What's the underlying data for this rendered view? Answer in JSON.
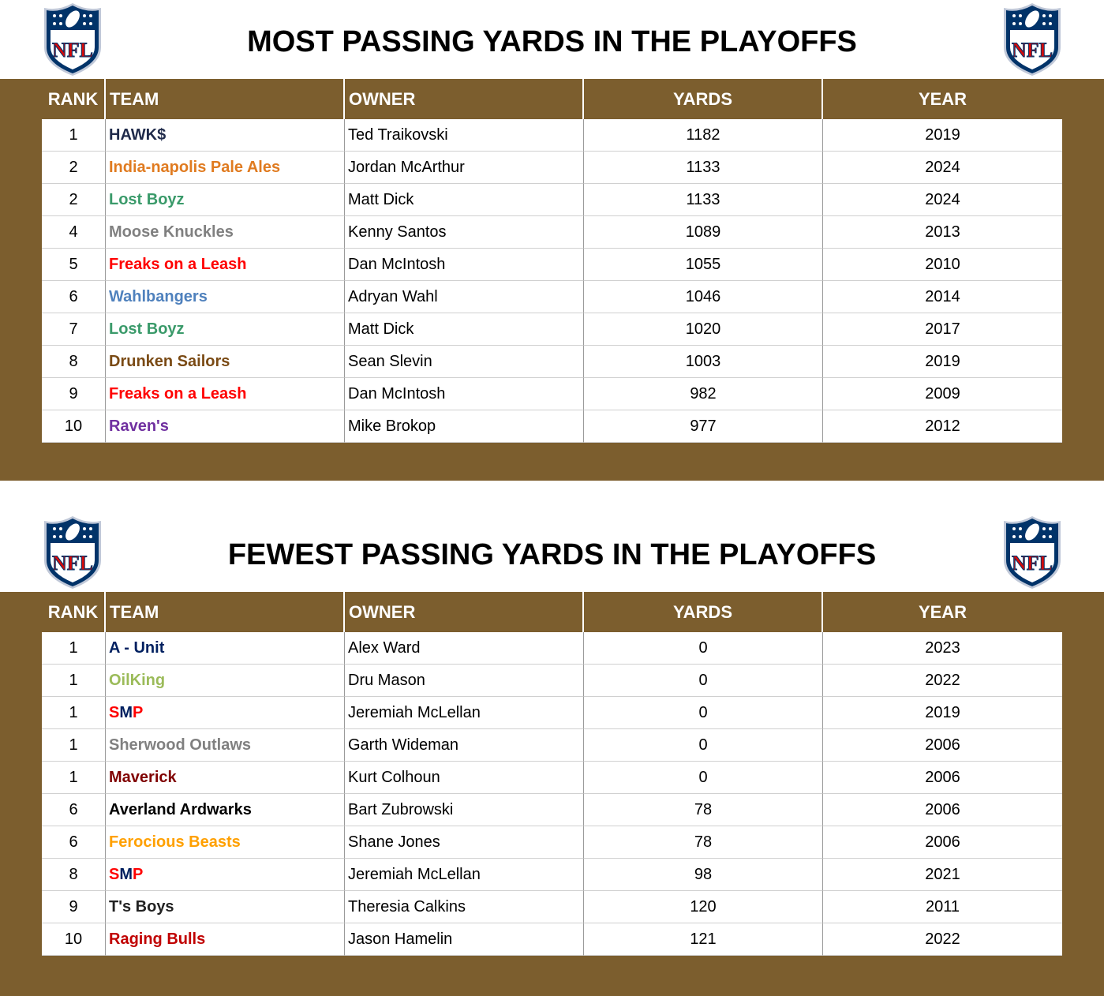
{
  "logo": "NFL",
  "columns": [
    "RANK",
    "TEAM",
    "OWNER",
    "YARDS",
    "YEAR"
  ],
  "sections": [
    {
      "title": "MOST PASSING YARDS IN THE PLAYOFFS",
      "rows": [
        {
          "rank": 1,
          "team": [
            {
              "text": "HAWK$",
              "color": "#1f2a4a"
            }
          ],
          "owner": "Ted Traikovski",
          "yards": 1182,
          "year": 2019
        },
        {
          "rank": 2,
          "team": [
            {
              "text": "India-napolis Pale Ales",
              "color": "#e07b20"
            }
          ],
          "owner": "Jordan McArthur",
          "yards": 1133,
          "year": 2024
        },
        {
          "rank": 2,
          "team": [
            {
              "text": "Lost Boyz",
              "color": "#3a9a6a"
            }
          ],
          "owner": "Matt Dick",
          "yards": 1133,
          "year": 2024
        },
        {
          "rank": 4,
          "team": [
            {
              "text": "Moose Knuckles",
              "color": "#808080"
            }
          ],
          "owner": "Kenny Santos",
          "yards": 1089,
          "year": 2013
        },
        {
          "rank": 5,
          "team": [
            {
              "text": "Freaks on a Leash",
              "color": "#ff0000"
            }
          ],
          "owner": "Dan McIntosh",
          "yards": 1055,
          "year": 2010
        },
        {
          "rank": 6,
          "team": [
            {
              "text": "Wahlbangers",
              "color": "#4f81bd"
            }
          ],
          "owner": "Adryan Wahl",
          "yards": 1046,
          "year": 2014
        },
        {
          "rank": 7,
          "team": [
            {
              "text": "Lost Boyz",
              "color": "#3a9a6a"
            }
          ],
          "owner": "Matt Dick",
          "yards": 1020,
          "year": 2017
        },
        {
          "rank": 8,
          "team": [
            {
              "text": "Drunken Sailors",
              "color": "#7a4a14"
            }
          ],
          "owner": "Sean Slevin",
          "yards": 1003,
          "year": 2019
        },
        {
          "rank": 9,
          "team": [
            {
              "text": "Freaks on a Leash",
              "color": "#ff0000"
            }
          ],
          "owner": "Dan McIntosh",
          "yards": 982,
          "year": 2009
        },
        {
          "rank": 10,
          "team": [
            {
              "text": "Raven's",
              "color": "#7030a0"
            }
          ],
          "owner": "Mike Brokop",
          "yards": 977,
          "year": 2012
        }
      ]
    },
    {
      "title": "FEWEST PASSING YARDS IN THE PLAYOFFS",
      "rows": [
        {
          "rank": 1,
          "team": [
            {
              "text": "A - Unit",
              "color": "#002060"
            }
          ],
          "owner": "Alex Ward",
          "yards": 0,
          "year": 2023
        },
        {
          "rank": 1,
          "team": [
            {
              "text": "OilKing",
              "color": "#9bbb59"
            }
          ],
          "owner": "Dru Mason",
          "yards": 0,
          "year": 2022
        },
        {
          "rank": 1,
          "team": [
            {
              "text": "S",
              "color": "#ff0000"
            },
            {
              "text": "M",
              "color": "#002060"
            },
            {
              "text": "P",
              "color": "#ff0000"
            }
          ],
          "owner": "Jeremiah McLellan",
          "yards": 0,
          "year": 2019
        },
        {
          "rank": 1,
          "team": [
            {
              "text": "Sherwood Outlaws",
              "color": "#808080"
            }
          ],
          "owner": "Garth Wideman",
          "yards": 0,
          "year": 2006
        },
        {
          "rank": 1,
          "team": [
            {
              "text": "Maverick",
              "color": "#800000"
            }
          ],
          "owner": "Kurt Colhoun",
          "yards": 0,
          "year": 2006
        },
        {
          "rank": 6,
          "team": [
            {
              "text": "Averland Ardwarks",
              "color": "#000000"
            }
          ],
          "owner": "Bart Zubrowski",
          "yards": 78,
          "year": 2006
        },
        {
          "rank": 6,
          "team": [
            {
              "text": "Ferocious Beasts",
              "color": "#ffa000"
            }
          ],
          "owner": "Shane Jones",
          "yards": 78,
          "year": 2006
        },
        {
          "rank": 8,
          "team": [
            {
              "text": "S",
              "color": "#ff0000"
            },
            {
              "text": "M",
              "color": "#002060"
            },
            {
              "text": "P",
              "color": "#ff0000"
            }
          ],
          "owner": "Jeremiah McLellan",
          "yards": 98,
          "year": 2021
        },
        {
          "rank": 9,
          "team": [
            {
              "text": "T's Boys",
              "color": "#222222"
            }
          ],
          "owner": "Theresia Calkins",
          "yards": 120,
          "year": 2011
        },
        {
          "rank": 10,
          "team": [
            {
              "text": "Raging Bulls",
              "color": "#c00000"
            }
          ],
          "owner": "Jason Hamelin",
          "yards": 121,
          "year": 2022
        }
      ]
    }
  ]
}
